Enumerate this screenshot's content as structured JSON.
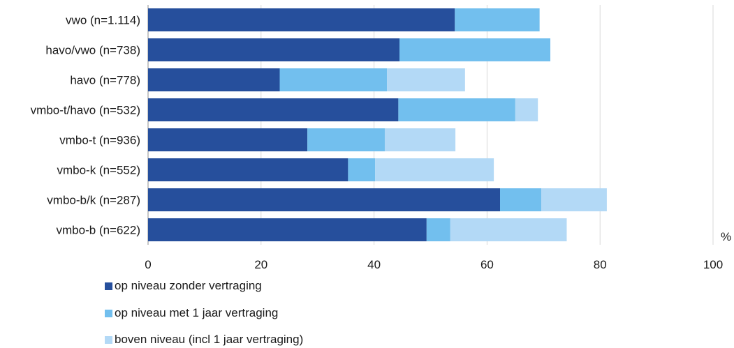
{
  "chart_data": {
    "type": "bar",
    "orientation": "horizontal",
    "stacked": true,
    "categories": [
      "vwo (n=1.114)",
      "havo/vwo (n=738)",
      "havo (n=778)",
      "vmbo-t/havo (n=532)",
      "vmbo-t (n=936)",
      "vmbo-k (n=552)",
      "vmbo-b/k (n=287)",
      "vmbo-b (n=622)"
    ],
    "series": [
      {
        "name": "op niveau zonder vertraging",
        "color": "#264f9c",
        "values": [
          54.3,
          44.5,
          23.3,
          44.3,
          28.2,
          35.4,
          62.3,
          49.3
        ]
      },
      {
        "name": "op niveau met 1 jaar vertraging",
        "color": "#72bfee",
        "values": [
          15.0,
          26.7,
          19.0,
          20.7,
          13.7,
          4.8,
          7.3,
          4.2
        ]
      },
      {
        "name": "boven niveau (incl 1 jaar vertraging)",
        "color": "#b3d9f6",
        "values": [
          0,
          0,
          13.8,
          4.0,
          12.5,
          21.0,
          11.6,
          20.6
        ]
      }
    ],
    "x_ticks": [
      "0",
      "20",
      "40",
      "60",
      "80",
      "100"
    ],
    "xlim": [
      0,
      100
    ],
    "x_unit": "%",
    "grid": true,
    "legend_position": "bottom-left"
  }
}
